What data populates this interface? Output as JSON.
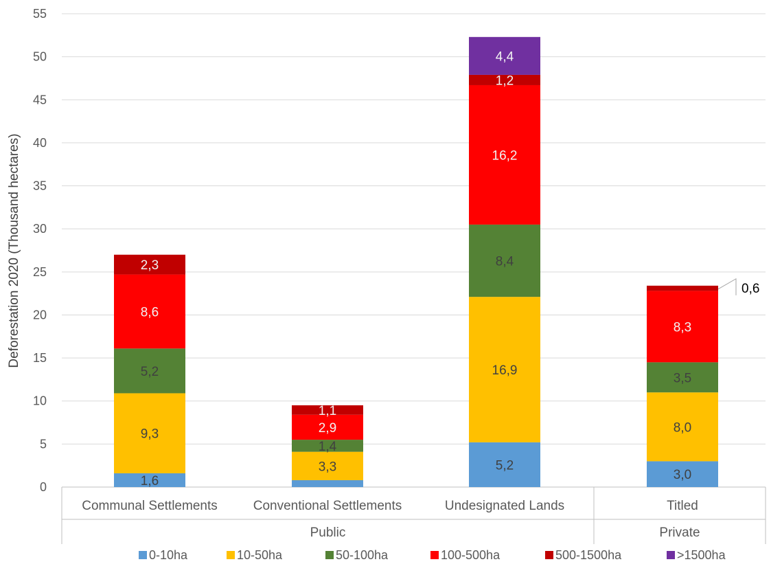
{
  "chart_data": {
    "type": "bar",
    "stacked": true,
    "ylabel": "Deforestation 2020  (Thousand hectares)",
    "ylim": [
      0,
      55
    ],
    "yticks": [
      0,
      5,
      10,
      15,
      20,
      25,
      30,
      35,
      40,
      45,
      50,
      55
    ],
    "grid": true,
    "legend_position": "bottom",
    "categories": [
      "Communal Settlements",
      "Conventional Settlements",
      "Undesignated Lands",
      "Titled"
    ],
    "groups": [
      {
        "label": "Public",
        "categories": [
          "Communal Settlements",
          "Conventional Settlements",
          "Undesignated Lands"
        ]
      },
      {
        "label": "Private",
        "categories": [
          "Titled"
        ]
      }
    ],
    "series": [
      {
        "name": "0-10ha",
        "color": "#5b9bd5",
        "values": [
          1.6,
          0.8,
          5.2,
          3.0
        ],
        "labels": [
          "1,6",
          "",
          "5,2",
          "3,0"
        ]
      },
      {
        "name": "10-50ha",
        "color": "#ffc000",
        "values": [
          9.3,
          3.3,
          16.9,
          8.0
        ],
        "labels": [
          "9,3",
          "3,3",
          "16,9",
          "8,0"
        ]
      },
      {
        "name": "50-100ha",
        "color": "#548235",
        "values": [
          5.2,
          1.4,
          8.4,
          3.5
        ],
        "labels": [
          "5,2",
          "1,4",
          "8,4",
          "3,5"
        ]
      },
      {
        "name": "100-500ha",
        "color": "#ff0000",
        "values": [
          8.6,
          2.9,
          16.2,
          8.3
        ],
        "labels": [
          "8,6",
          "2,9",
          "16,2",
          "8,3"
        ]
      },
      {
        "name": "500-1500ha",
        "color": "#c00000",
        "values": [
          2.3,
          1.1,
          1.2,
          0.6
        ],
        "labels": [
          "2,3",
          "1,1",
          "1,2",
          "0,6"
        ]
      },
      {
        "name": ">1500ha",
        "color": "#7030a0",
        "values": [
          0,
          0,
          4.4,
          0
        ],
        "labels": [
          "",
          "",
          "4,4",
          ""
        ]
      }
    ]
  }
}
